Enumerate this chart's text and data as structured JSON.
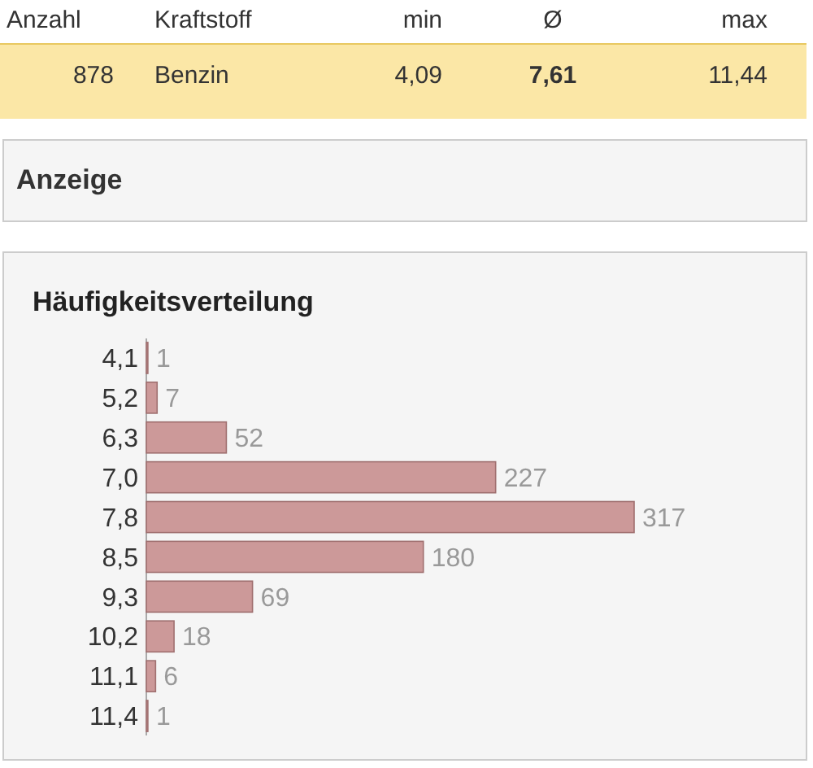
{
  "chart_data": {
    "type": "bar",
    "orientation": "horizontal",
    "title": "Häufigkeitsverteilung",
    "categories": [
      "4,1",
      "5,2",
      "6,3",
      "7,0",
      "7,8",
      "8,5",
      "9,3",
      "10,2",
      "11,1",
      "11,4"
    ],
    "values": [
      1,
      7,
      52,
      227,
      317,
      180,
      69,
      18,
      6,
      1
    ],
    "color": "#cc9999",
    "data_labels": true,
    "annotations": [
      "Anzahl",
      "Kraftstoff",
      "min",
      "Ø",
      "max",
      "878",
      "Benzin",
      "4,09",
      "7,61",
      "11,44",
      "Anzeige"
    ]
  }
}
